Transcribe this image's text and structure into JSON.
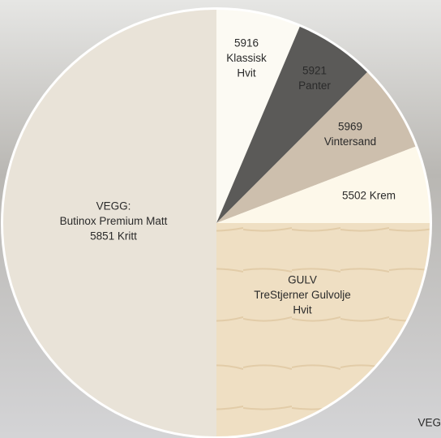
{
  "slices": [
    {
      "lines": [
        "VEGG:",
        "Butinox Premium Matt",
        "5851 Kritt"
      ]
    },
    {
      "lines": [
        "5916",
        "Klassisk",
        "Hvit"
      ]
    },
    {
      "lines": [
        "5921",
        "Panter"
      ]
    },
    {
      "lines": [
        "5969",
        "Vintersand"
      ]
    },
    {
      "lines": [
        "5502 Krem"
      ]
    },
    {
      "lines": [
        "GULV",
        "TreStjerner Gulvolje",
        "Hvit"
      ]
    }
  ],
  "corner_text": "VEG"
}
